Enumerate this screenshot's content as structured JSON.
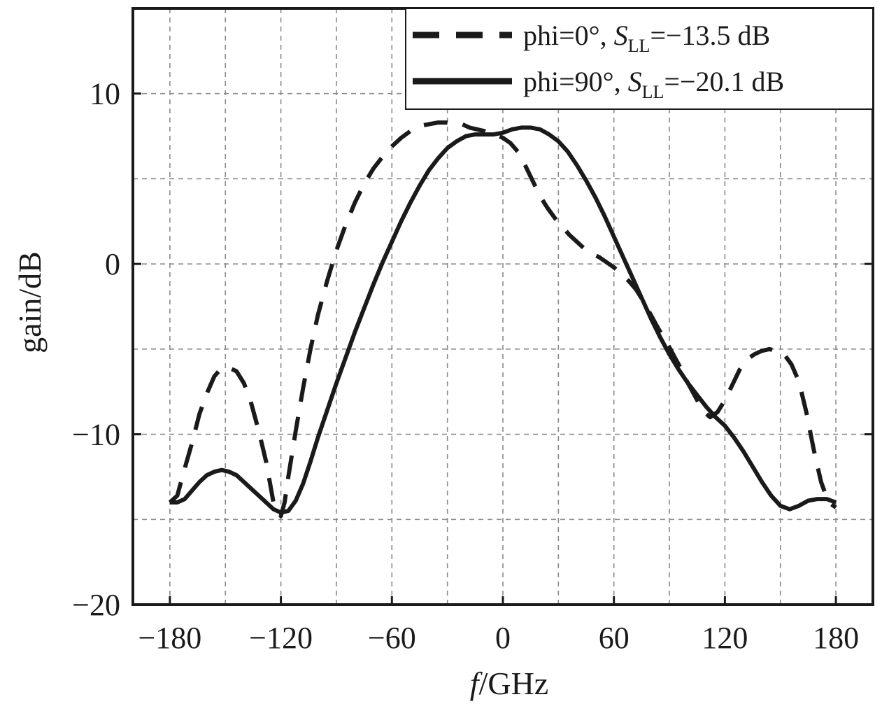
{
  "chart_data": {
    "type": "line",
    "xlabel_italic": "f",
    "xlabel_rest": "/GHz",
    "ylabel": "gain/dB",
    "xlim": [
      -200,
      200
    ],
    "ylim": [
      -20,
      15
    ],
    "xticks": [
      -180,
      -120,
      -60,
      0,
      60,
      120,
      180
    ],
    "xtick_labels": [
      "−180",
      "−120",
      "−60",
      "0",
      "60",
      "120",
      "180"
    ],
    "xgrid_minor": [
      -150,
      -90,
      -30,
      30,
      90,
      150
    ],
    "yticks": [
      -20,
      -10,
      0,
      10
    ],
    "ytick_labels": [
      "−20",
      "−10",
      "0",
      "10"
    ],
    "ygrid_minor": [
      -15,
      -5,
      5
    ],
    "grid": true,
    "legend_position": "top-right",
    "series": [
      {
        "legend_prefix": "phi=0°, ",
        "legend_sym": "S",
        "legend_sub": "LL",
        "legend_suffix": "=−13.5 dB",
        "style": "dashed",
        "color": "#1a1a1a",
        "x": [
          -180,
          -176,
          -172,
          -168,
          -164,
          -160,
          -156,
          -152,
          -148,
          -144,
          -140,
          -136,
          -132,
          -128,
          -126,
          -124,
          -122,
          -120,
          -118,
          -116,
          -112,
          -108,
          -104,
          -100,
          -95,
          -90,
          -85,
          -80,
          -75,
          -70,
          -65,
          -60,
          -55,
          -50,
          -45,
          -40,
          -35,
          -30,
          -25,
          -22,
          -18,
          -14,
          -10,
          -6,
          -2,
          0,
          4,
          8,
          12,
          16,
          20,
          24,
          28,
          32,
          36,
          40,
          44,
          48,
          52,
          56,
          60,
          64,
          68,
          72,
          76,
          80,
          84,
          88,
          92,
          96,
          100,
          104,
          108,
          112,
          116,
          120,
          124,
          128,
          132,
          136,
          140,
          144,
          148,
          152,
          156,
          160,
          164,
          168,
          172,
          176,
          180
        ],
        "y": [
          -14,
          -13.6,
          -12,
          -10.5,
          -8.8,
          -7.6,
          -6.6,
          -6.1,
          -6.1,
          -6.3,
          -7.0,
          -8.2,
          -9.8,
          -11.6,
          -12.8,
          -14.0,
          -14.6,
          -14.8,
          -14.0,
          -12.5,
          -9.8,
          -7.3,
          -5.0,
          -3.0,
          -1.0,
          0.8,
          2.3,
          3.6,
          4.7,
          5.6,
          6.3,
          6.9,
          7.4,
          7.8,
          8.1,
          8.2,
          8.3,
          8.3,
          8.2,
          8.2,
          8.0,
          7.9,
          7.8,
          7.6,
          7.5,
          7.4,
          7.1,
          6.6,
          5.8,
          4.9,
          4.0,
          3.3,
          2.7,
          2.2,
          1.7,
          1.3,
          0.9,
          0.6,
          0.4,
          0.1,
          -0.2,
          -0.6,
          -1.0,
          -1.5,
          -2.2,
          -3.0,
          -3.8,
          -4.5,
          -5.3,
          -6.1,
          -7.0,
          -7.8,
          -8.6,
          -9.0,
          -8.7,
          -8.0,
          -7.1,
          -6.2,
          -5.6,
          -5.3,
          -5.1,
          -5.0,
          -5.1,
          -5.3,
          -5.9,
          -6.9,
          -8.7,
          -10.9,
          -12.8,
          -14.0,
          -14.3
        ]
      },
      {
        "legend_prefix": "phi=90°, ",
        "legend_sym": "S",
        "legend_sub": "LL",
        "legend_suffix": "=−20.1 dB",
        "style": "solid",
        "color": "#1a1a1a",
        "x": [
          -180,
          -176,
          -172,
          -168,
          -164,
          -160,
          -156,
          -152,
          -148,
          -144,
          -140,
          -136,
          -132,
          -128,
          -124,
          -120,
          -116,
          -112,
          -108,
          -104,
          -100,
          -95,
          -90,
          -85,
          -80,
          -75,
          -70,
          -65,
          -60,
          -55,
          -50,
          -45,
          -40,
          -35,
          -30,
          -25,
          -20,
          -15,
          -10,
          -5,
          0,
          5,
          10,
          15,
          20,
          25,
          30,
          35,
          40,
          45,
          50,
          55,
          60,
          65,
          70,
          75,
          80,
          85,
          90,
          95,
          100,
          105,
          110,
          115,
          120,
          125,
          130,
          135,
          140,
          145,
          150,
          155,
          160,
          165,
          170,
          175,
          180
        ],
        "y": [
          -14.0,
          -14.0,
          -13.8,
          -13.3,
          -12.8,
          -12.4,
          -12.2,
          -12.1,
          -12.2,
          -12.4,
          -12.8,
          -13.2,
          -13.6,
          -14.0,
          -14.4,
          -14.6,
          -14.5,
          -13.9,
          -12.9,
          -11.6,
          -10.2,
          -8.6,
          -7.0,
          -5.5,
          -4.0,
          -2.6,
          -1.2,
          0.1,
          1.3,
          2.5,
          3.6,
          4.6,
          5.5,
          6.2,
          6.8,
          7.2,
          7.5,
          7.6,
          7.6,
          7.6,
          7.7,
          7.9,
          8.0,
          8.0,
          7.9,
          7.6,
          7.2,
          6.6,
          5.8,
          4.9,
          3.9,
          2.8,
          1.6,
          0.4,
          -0.8,
          -2.0,
          -3.2,
          -4.3,
          -5.3,
          -6.2,
          -7.0,
          -7.7,
          -8.4,
          -9.0,
          -9.5,
          -10.2,
          -11.0,
          -11.9,
          -12.8,
          -13.6,
          -14.2,
          -14.4,
          -14.2,
          -13.9,
          -13.8,
          -13.8,
          -14.0
        ]
      }
    ]
  }
}
